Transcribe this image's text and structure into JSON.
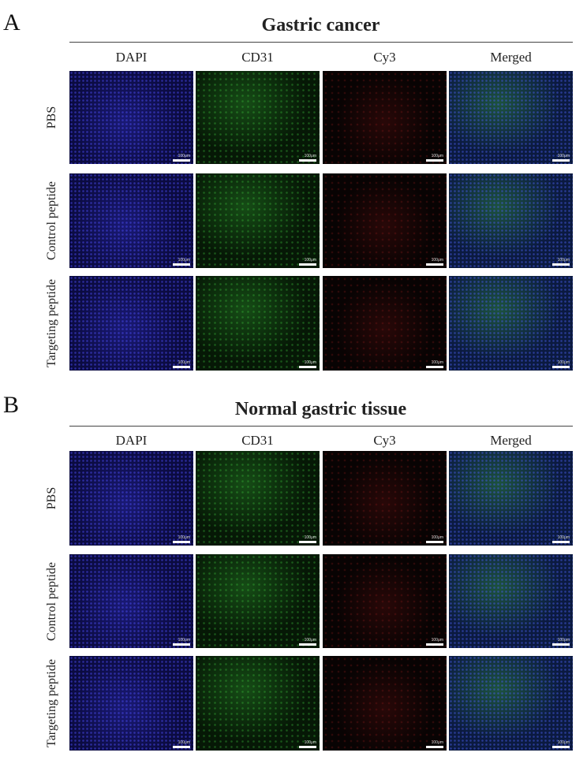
{
  "panels": [
    {
      "letter": "A",
      "title": "Gastric cancer",
      "columns": [
        "DAPI",
        "CD31",
        "Cy3",
        "Merged"
      ],
      "rows": [
        "PBS",
        "Control peptide",
        "Targeting peptide"
      ]
    },
    {
      "letter": "B",
      "title": "Normal gastric tissue",
      "columns": [
        "DAPI",
        "CD31",
        "Cy3",
        "Merged"
      ],
      "rows": [
        "PBS",
        "Control peptide",
        "Targeting peptide"
      ]
    }
  ],
  "scale_bar": "100μm"
}
